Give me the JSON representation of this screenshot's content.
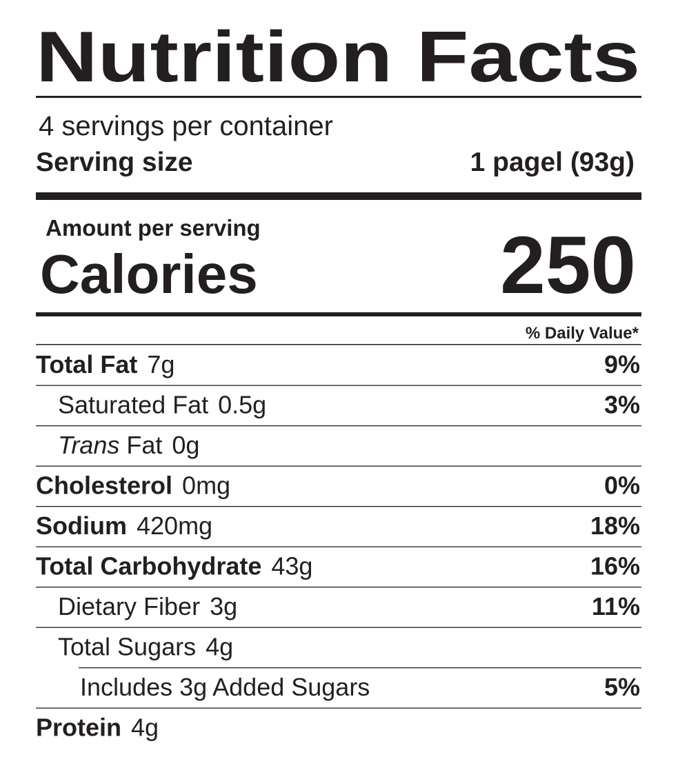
{
  "header": {
    "title": "Nutrition Facts",
    "servings": "4 servings per container",
    "serving_size_label": "Serving size",
    "serving_size": "1 pagel (93g)"
  },
  "calories": {
    "amount_label": "Amount per serving",
    "label": "Calories",
    "value": 250
  },
  "daily_value_header": "% Daily Value*",
  "rows": [
    {
      "name": "Total Fat",
      "amount": "7g",
      "dv": "9%"
    },
    {
      "name": "Saturated Fat",
      "amount": "0.5g",
      "dv": "3%"
    },
    {
      "name_italic": "Trans",
      "name": "Fat",
      "amount": "0g"
    },
    {
      "name": "Cholesterol",
      "amount": "0mg",
      "dv": "0%"
    },
    {
      "name": "Sodium",
      "amount": "420mg",
      "dv": "18%"
    },
    {
      "name": "Total Carbohydrate",
      "amount": "43g",
      "dv": "16%"
    },
    {
      "name": "Dietary Fiber",
      "amount": "3g",
      "dv": "11%"
    },
    {
      "name": "Total Sugars",
      "amount": "4g"
    },
    {
      "name": "Includes 3g Added Sugars",
      "dv": "5%"
    },
    {
      "name": "Protein",
      "amount": "4g"
    }
  ]
}
